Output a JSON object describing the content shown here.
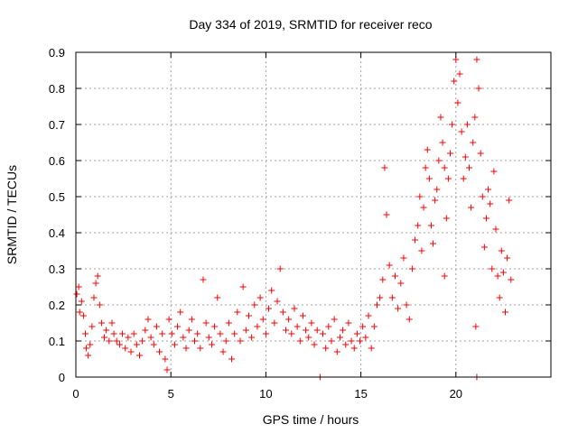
{
  "chart_data": {
    "type": "scatter",
    "title": "Day 334 of 2019, SRMTID for receiver reco",
    "xlabel": "GPS time / hours",
    "ylabel": "SRMTID / TECUs",
    "xlim": [
      0,
      25
    ],
    "ylim": [
      0,
      0.9
    ],
    "xticks": [
      0,
      5,
      10,
      15,
      20
    ],
    "yticks": [
      0,
      0.1,
      0.2,
      0.3,
      0.4,
      0.5,
      0.6,
      0.7,
      0.8,
      0.9
    ],
    "xtick_labels": [
      "0",
      "5",
      "10",
      "15",
      "20"
    ],
    "ytick_labels": [
      "0",
      "0.1",
      "0.2",
      "0.3",
      "0.4",
      "0.5",
      "0.6",
      "0.7",
      "0.8",
      "0.9"
    ],
    "grid": true,
    "marker": "+",
    "color": "#ff0000",
    "series": [
      {
        "name": "SRMTID",
        "points": [
          [
            0.05,
            0.23
          ],
          [
            0.15,
            0.25
          ],
          [
            0.2,
            0.18
          ],
          [
            0.3,
            0.21
          ],
          [
            0.4,
            0.17
          ],
          [
            0.5,
            0.12
          ],
          [
            0.55,
            0.08
          ],
          [
            0.65,
            0.06
          ],
          [
            0.75,
            0.09
          ],
          [
            0.85,
            0.14
          ],
          [
            0.95,
            0.22
          ],
          [
            1.05,
            0.26
          ],
          [
            1.15,
            0.28
          ],
          [
            1.25,
            0.2
          ],
          [
            1.35,
            0.15
          ],
          [
            1.5,
            0.11
          ],
          [
            1.6,
            0.13
          ],
          [
            1.75,
            0.1
          ],
          [
            1.9,
            0.15
          ],
          [
            2.0,
            0.12
          ],
          [
            2.15,
            0.1
          ],
          [
            2.3,
            0.09
          ],
          [
            2.45,
            0.12
          ],
          [
            2.6,
            0.08
          ],
          [
            2.75,
            0.11
          ],
          [
            2.9,
            0.07
          ],
          [
            3.05,
            0.12
          ],
          [
            3.2,
            0.09
          ],
          [
            3.35,
            0.06
          ],
          [
            3.5,
            0.1
          ],
          [
            3.65,
            0.13
          ],
          [
            3.8,
            0.16
          ],
          [
            3.95,
            0.11
          ],
          [
            4.1,
            0.09
          ],
          [
            4.25,
            0.14
          ],
          [
            4.4,
            0.07
          ],
          [
            4.55,
            0.12
          ],
          [
            4.7,
            0.05
          ],
          [
            4.8,
            0.02
          ],
          [
            4.9,
            0.16
          ],
          [
            5.05,
            0.12
          ],
          [
            5.2,
            0.09
          ],
          [
            5.35,
            0.14
          ],
          [
            5.5,
            0.18
          ],
          [
            5.65,
            0.11
          ],
          [
            5.8,
            0.08
          ],
          [
            5.95,
            0.13
          ],
          [
            6.1,
            0.16
          ],
          [
            6.25,
            0.1
          ],
          [
            6.4,
            0.12
          ],
          [
            6.55,
            0.08
          ],
          [
            6.7,
            0.27
          ],
          [
            6.85,
            0.15
          ],
          [
            7.0,
            0.11
          ],
          [
            7.15,
            0.09
          ],
          [
            7.3,
            0.14
          ],
          [
            7.45,
            0.22
          ],
          [
            7.6,
            0.12
          ],
          [
            7.75,
            0.07
          ],
          [
            7.9,
            0.1
          ],
          [
            8.05,
            0.15
          ],
          [
            8.2,
            0.05
          ],
          [
            8.35,
            0.12
          ],
          [
            8.5,
            0.18
          ],
          [
            8.65,
            0.1
          ],
          [
            8.8,
            0.25
          ],
          [
            8.95,
            0.13
          ],
          [
            9.1,
            0.17
          ],
          [
            9.25,
            0.11
          ],
          [
            9.4,
            0.2
          ],
          [
            9.55,
            0.14
          ],
          [
            9.7,
            0.22
          ],
          [
            9.85,
            0.16
          ],
          [
            10.0,
            0.12
          ],
          [
            10.15,
            0.19
          ],
          [
            10.3,
            0.24
          ],
          [
            10.45,
            0.15
          ],
          [
            10.6,
            0.21
          ],
          [
            10.75,
            0.3
          ],
          [
            10.9,
            0.18
          ],
          [
            11.05,
            0.13
          ],
          [
            11.2,
            0.16
          ],
          [
            11.35,
            0.12
          ],
          [
            11.5,
            0.19
          ],
          [
            11.65,
            0.14
          ],
          [
            11.8,
            0.1
          ],
          [
            11.95,
            0.17
          ],
          [
            12.1,
            0.13
          ],
          [
            12.25,
            0.11
          ],
          [
            12.4,
            0.15
          ],
          [
            12.55,
            0.09
          ],
          [
            12.7,
            0.13
          ],
          [
            12.85,
            0.0
          ],
          [
            13.0,
            0.12
          ],
          [
            13.15,
            0.08
          ],
          [
            13.3,
            0.14
          ],
          [
            13.45,
            0.1
          ],
          [
            13.6,
            0.16
          ],
          [
            13.75,
            0.07
          ],
          [
            13.9,
            0.11
          ],
          [
            14.05,
            0.13
          ],
          [
            14.2,
            0.09
          ],
          [
            14.35,
            0.15
          ],
          [
            14.5,
            0.1
          ],
          [
            14.65,
            0.08
          ],
          [
            14.8,
            0.12
          ],
          [
            14.95,
            0.1
          ],
          [
            15.1,
            0.14
          ],
          [
            15.25,
            0.11
          ],
          [
            15.4,
            0.17
          ],
          [
            15.55,
            0.08
          ],
          [
            15.7,
            0.14
          ],
          [
            15.85,
            0.2
          ],
          [
            16.0,
            0.22
          ],
          [
            16.15,
            0.27
          ],
          [
            16.25,
            0.58
          ],
          [
            16.35,
            0.45
          ],
          [
            16.5,
            0.31
          ],
          [
            16.65,
            0.22
          ],
          [
            16.8,
            0.28
          ],
          [
            16.95,
            0.19
          ],
          [
            17.1,
            0.26
          ],
          [
            17.25,
            0.33
          ],
          [
            17.4,
            0.2
          ],
          [
            17.55,
            0.16
          ],
          [
            17.7,
            0.3
          ],
          [
            17.85,
            0.38
          ],
          [
            18.0,
            0.42
          ],
          [
            18.1,
            0.5
          ],
          [
            18.2,
            0.35
          ],
          [
            18.3,
            0.47
          ],
          [
            18.4,
            0.58
          ],
          [
            18.5,
            0.63
          ],
          [
            18.6,
            0.55
          ],
          [
            18.7,
            0.42
          ],
          [
            18.8,
            0.37
          ],
          [
            18.9,
            0.49
          ],
          [
            19.0,
            0.52
          ],
          [
            19.1,
            0.6
          ],
          [
            19.2,
            0.72
          ],
          [
            19.3,
            0.65
          ],
          [
            19.4,
            0.58
          ],
          [
            19.5,
            0.44
          ],
          [
            19.6,
            0.55
          ],
          [
            19.7,
            0.62
          ],
          [
            19.8,
            0.7
          ],
          [
            19.9,
            0.82
          ],
          [
            20.0,
            0.88
          ],
          [
            20.1,
            0.76
          ],
          [
            20.2,
            0.84
          ],
          [
            20.3,
            0.68
          ],
          [
            20.4,
            0.55
          ],
          [
            20.5,
            0.61
          ],
          [
            20.6,
            0.7
          ],
          [
            20.7,
            0.58
          ],
          [
            20.8,
            0.47
          ],
          [
            20.9,
            0.65
          ],
          [
            21.0,
            0.72
          ],
          [
            21.1,
            0.88
          ],
          [
            21.2,
            0.8
          ],
          [
            21.3,
            0.62
          ],
          [
            21.4,
            0.5
          ],
          [
            21.5,
            0.36
          ],
          [
            21.6,
            0.44
          ],
          [
            21.7,
            0.52
          ],
          [
            21.8,
            0.48
          ],
          [
            21.9,
            0.3
          ],
          [
            22.0,
            0.57
          ],
          [
            22.1,
            0.41
          ],
          [
            22.2,
            0.28
          ],
          [
            22.3,
            0.22
          ],
          [
            22.4,
            0.35
          ],
          [
            22.5,
            0.29
          ],
          [
            22.6,
            0.18
          ],
          [
            22.7,
            0.33
          ],
          [
            22.8,
            0.49
          ],
          [
            22.9,
            0.27
          ],
          [
            21.05,
            0.14
          ],
          [
            21.1,
            0.0
          ],
          [
            19.4,
            0.28
          ]
        ]
      }
    ]
  }
}
